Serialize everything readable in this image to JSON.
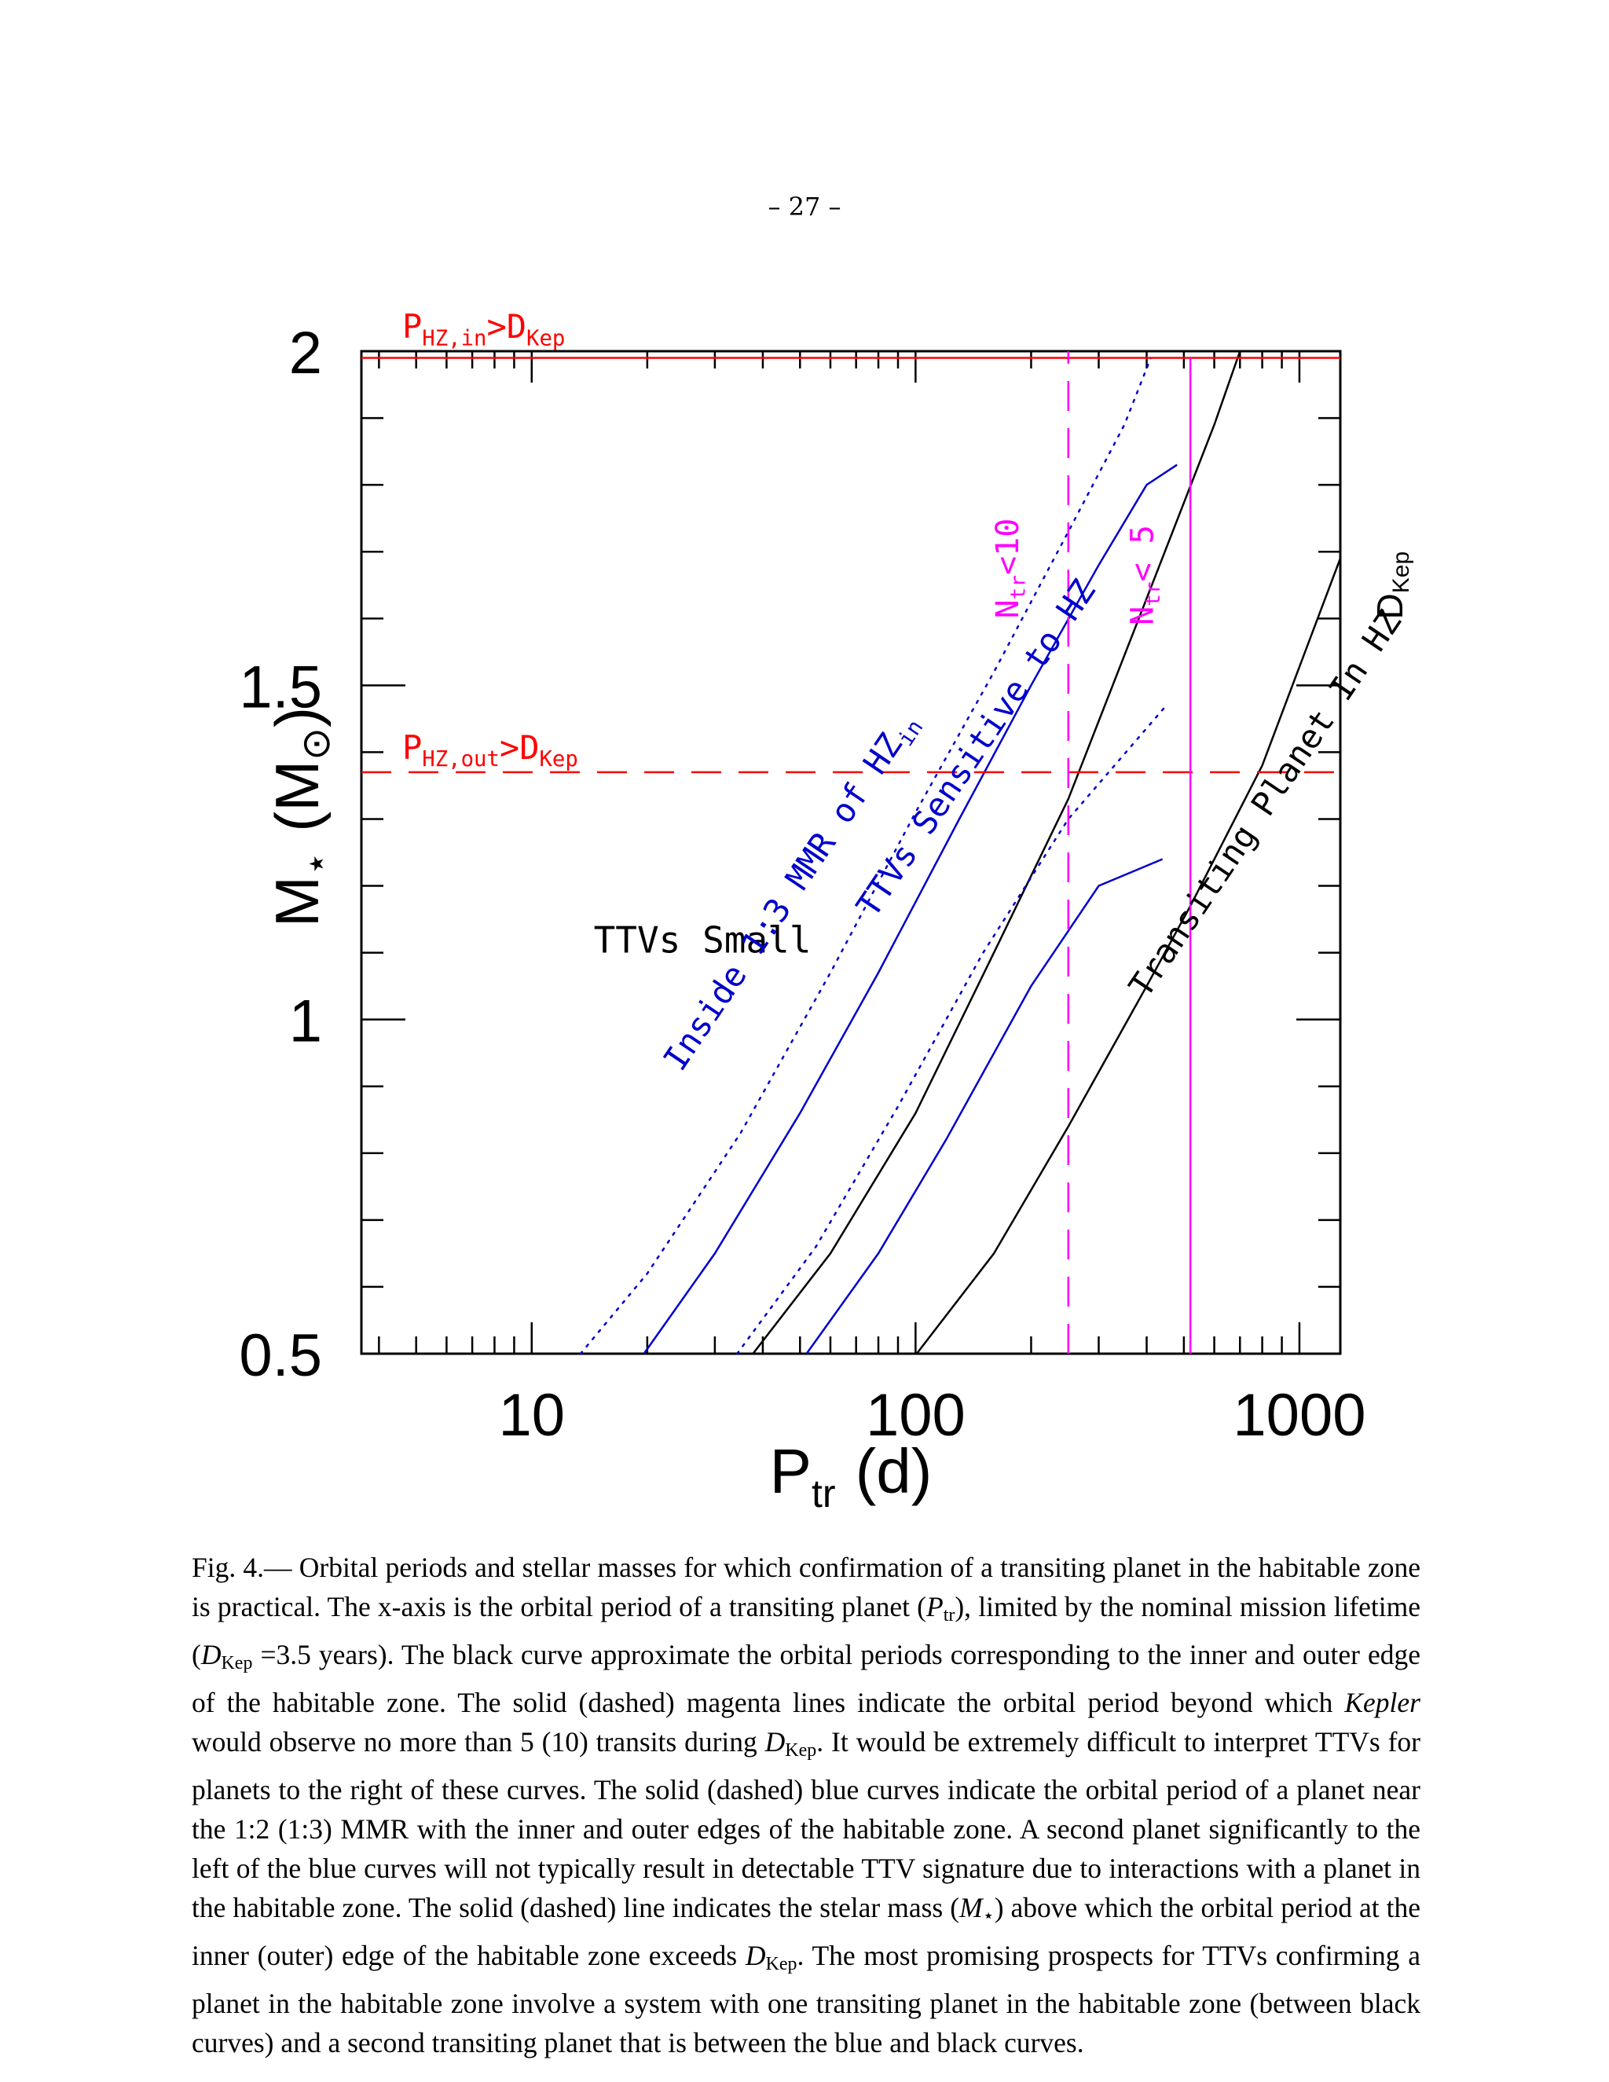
{
  "page": {
    "number": "– 27 –"
  },
  "chart_data": {
    "type": "line",
    "xscale": "log",
    "xlim": [
      3.6,
      1278
    ],
    "ylim": [
      0.5,
      2.0
    ],
    "x_ticks": [
      10,
      100,
      1000
    ],
    "x_tick_labels": [
      "10",
      "100",
      "1000"
    ],
    "y_ticks": [
      0.5,
      1.0,
      1.5,
      2.0
    ],
    "y_tick_labels": [
      "0.5",
      "1",
      "1.5",
      "2"
    ],
    "xlabel": {
      "main": "P",
      "sub": "tr",
      "tail": "(d)"
    },
    "ylabel": {
      "main": "M",
      "sub": "⋆",
      "tail": "(M",
      "sun": "⊙",
      "close": ")"
    },
    "right_label": {
      "main": "D",
      "sub": "Kep"
    },
    "colors": {
      "black": "#000000",
      "blue": "#0000cc",
      "red": "#ff0000",
      "magenta": "#ff00ff"
    },
    "series": [
      {
        "color": "black",
        "style": "solid",
        "points": [
          [
            100.7,
            0.5
          ],
          [
            160,
            0.65
          ],
          [
            250,
            0.84
          ],
          [
            400,
            1.05
          ],
          [
            520,
            1.17
          ],
          [
            800,
            1.38
          ],
          [
            1278,
            1.69
          ]
        ]
      },
      {
        "color": "black",
        "style": "solid",
        "points": [
          [
            37.7,
            0.5
          ],
          [
            60,
            0.65
          ],
          [
            100,
            0.86
          ],
          [
            160,
            1.1
          ],
          [
            250,
            1.33
          ],
          [
            400,
            1.63
          ],
          [
            600,
            1.89
          ],
          [
            700,
            2.0
          ]
        ]
      },
      {
        "color": "blue",
        "style": "solid",
        "points": [
          [
            52,
            0.5
          ],
          [
            80,
            0.65
          ],
          [
            120,
            0.82
          ],
          [
            200,
            1.05
          ],
          [
            300,
            1.2
          ],
          [
            440,
            1.24
          ]
        ]
      },
      {
        "color": "blue",
        "style": "solid",
        "points": [
          [
            19.6,
            0.5
          ],
          [
            30,
            0.65
          ],
          [
            50,
            0.86
          ],
          [
            80,
            1.07
          ],
          [
            130,
            1.3
          ],
          [
            200,
            1.5
          ],
          [
            300,
            1.68
          ],
          [
            400,
            1.8
          ],
          [
            480,
            1.83
          ]
        ]
      },
      {
        "color": "blue",
        "style": "dotted",
        "points": [
          [
            34.3,
            0.5
          ],
          [
            55,
            0.66
          ],
          [
            90,
            0.87
          ],
          [
            150,
            1.1
          ],
          [
            250,
            1.3
          ],
          [
            450,
            1.47
          ]
        ]
      },
      {
        "color": "blue",
        "style": "dotted",
        "points": [
          [
            13.4,
            0.5
          ],
          [
            20,
            0.62
          ],
          [
            35,
            0.83
          ],
          [
            60,
            1.07
          ],
          [
            100,
            1.31
          ],
          [
            160,
            1.52
          ],
          [
            250,
            1.73
          ],
          [
            350,
            1.89
          ],
          [
            410,
            1.99
          ]
        ]
      },
      {
        "color": "red",
        "style": "solid",
        "points": [
          [
            3.6,
            1.99
          ],
          [
            1278,
            1.99
          ]
        ]
      },
      {
        "color": "red",
        "style": "dashed",
        "points": [
          [
            3.6,
            1.37
          ],
          [
            1278,
            1.37
          ]
        ]
      },
      {
        "color": "magenta",
        "style": "dashed",
        "points": [
          [
            250,
            0.5
          ],
          [
            250,
            2.0
          ]
        ]
      },
      {
        "color": "magenta",
        "style": "solid",
        "points": [
          [
            520,
            0.5
          ],
          [
            520,
            1.99
          ]
        ]
      }
    ],
    "annotations": [
      {
        "text": "TTVs Small",
        "color": "black",
        "x": 14.5,
        "y": 1.1,
        "rotate": 0,
        "size": 46
      },
      {
        "text": "Inside 1:3 MMR of HZ",
        "sub": "in",
        "color": "blue",
        "x": 24.5,
        "y": 0.92,
        "rotate": -56,
        "size": 42
      },
      {
        "text": "TTVs Sensitive to HZ",
        "color": "blue",
        "x": 78,
        "y": 1.15,
        "rotate": -56,
        "size": 42
      },
      {
        "text": "Transiting Planet In HZ",
        "color": "black",
        "x": 400,
        "y": 1.03,
        "rotate": -56,
        "size": 42
      },
      {
        "text": "N",
        "sub": "tr",
        "tail": "<10",
        "color": "magenta",
        "x": 185,
        "y": 1.6,
        "rotate": -90,
        "size": 40
      },
      {
        "text": "N",
        "sub": "tr",
        "tail": "< 5",
        "color": "magenta",
        "x": 415,
        "y": 1.59,
        "rotate": -90,
        "size": 40
      },
      {
        "text": "P",
        "sub": "HZ,in",
        "tail": ">D",
        "sub2": "Kep",
        "color": "red",
        "x": 4.6,
        "y": 2.02,
        "rotate": 0,
        "size": 42
      },
      {
        "text": "P",
        "sub": "HZ,out",
        "tail": ">D",
        "sub2": "Kep",
        "color": "red",
        "x": 4.6,
        "y": 1.39,
        "rotate": 0,
        "size": 42
      }
    ]
  },
  "caption": {
    "fig_label": "Fig. 4.—",
    "seg1": " Orbital periods and stellar masses for which confirmation of a transiting planet in the habitable zone is practical. The x-axis is the orbital period of a transiting planet (",
    "p_sym": "P",
    "p_sub": "tr",
    "seg2": "), limited by the nominal mission lifetime (",
    "d_sym": "D",
    "d_sub": "Kep",
    "seg3": " =3.5 years). The black curve approximate the orbital periods corresponding to the inner and outer edge of the habitable zone. The solid (dashed) magenta lines indicate the orbital period beyond which ",
    "kepler": "Kepler",
    "seg4": " would observe no more than 5 (10) transits during ",
    "d_sym2": "D",
    "d_sub2": "Kep",
    "seg5": ". It would be extremely difficult to interpret TTVs for planets to the right of these curves. The solid (dashed) blue curves indicate the orbital period of a planet near the 1:2 (1:3) MMR with the inner and outer edges of the habitable zone. A second planet significantly to the left of the blue curves will not typically result in detectable TTV signature due to interactions with a planet in the habitable zone. The solid (dashed) line indicates the stelar mass (",
    "m_sym": "M",
    "m_sub": "⋆",
    "seg6": ") above which the orbital period at the inner (outer) edge of the habitable zone exceeds ",
    "d_sym3": "D",
    "d_sub3": "Kep",
    "seg7": ". The most promising prospects for TTVs confirming a planet in the habitable zone involve a system with one transiting planet in the habitable zone (between black curves) and a second transiting planet that is between the blue and black curves."
  }
}
